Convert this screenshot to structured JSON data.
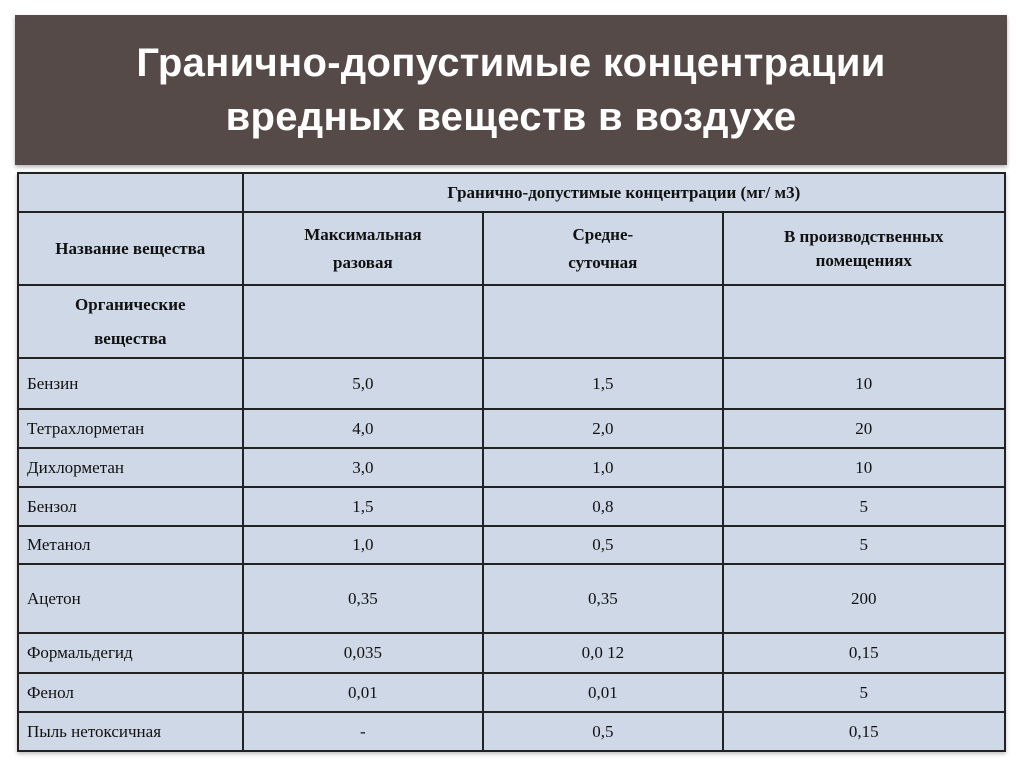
{
  "title": {
    "line1": "Гранично-допустимые концентрации",
    "line2": "вредных веществ в воздухе"
  },
  "table": {
    "group_header": "Гранично-допустимые концентрации (мг/ м3)",
    "name_header": "Название вещества",
    "col1": {
      "line1": "Максимальная",
      "line2": "разовая"
    },
    "col2": {
      "line1": "Средне-",
      "line2": "суточная"
    },
    "col3": {
      "line1": "В производственных",
      "line2": "помещениях"
    },
    "section": {
      "line1": "Органические",
      "line2": "вещества"
    },
    "rows": [
      {
        "name": "Бензин",
        "max": "5,0",
        "avg": "1,5",
        "work": "10"
      },
      {
        "name": "Тетрахлорметан",
        "max": "4,0",
        "avg": "2,0",
        "work": "20"
      },
      {
        "name": "Дихлорметан",
        "max": "3,0",
        "avg": "1,0",
        "work": "10"
      },
      {
        "name": "Бензол",
        "max": "1,5",
        "avg": "0,8",
        "work": "5"
      },
      {
        "name": "Метанол",
        "max": "1,0",
        "avg": "0,5",
        "work": "5"
      },
      {
        "name": "Ацетон",
        "max": "0,35",
        "avg": "0,35",
        "work": "200"
      },
      {
        "name": "Формальдегид",
        "max": "0,035",
        "avg": "0,0 12",
        "work": "0,15"
      },
      {
        "name": "Фенол",
        "max": "0,01",
        "avg": "0,01",
        "work": "5"
      },
      {
        "name": "Пыль нетоксичная",
        "max": "-",
        "avg": "0,5",
        "work": "0,15"
      }
    ]
  }
}
